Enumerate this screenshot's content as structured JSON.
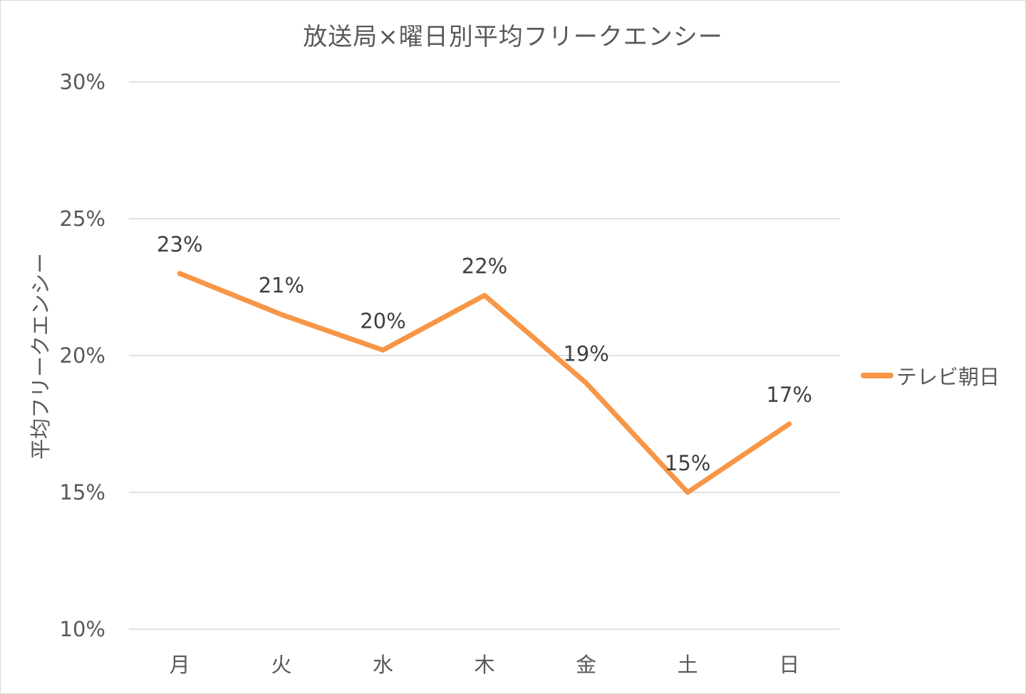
{
  "chart_data": {
    "type": "line",
    "title": "放送局×曜日別平均フリークエンシー",
    "xlabel": "",
    "ylabel": "平均フリークエンシー",
    "categories": [
      "月",
      "火",
      "水",
      "木",
      "金",
      "土",
      "日"
    ],
    "series": [
      {
        "name": "テレビ朝日",
        "color": "#F79646",
        "values": [
          0.23,
          0.215,
          0.202,
          0.222,
          0.19,
          0.15,
          0.175
        ],
        "labels": [
          "23%",
          "21%",
          "20%",
          "22%",
          "19%",
          "15%",
          "17%"
        ]
      }
    ],
    "ylim": [
      0.1,
      0.3
    ],
    "yticks": [
      {
        "value": 0.3,
        "label": "30%"
      },
      {
        "value": 0.25,
        "label": "25%"
      },
      {
        "value": 0.2,
        "label": "20%"
      },
      {
        "value": 0.15,
        "label": "15%"
      },
      {
        "value": 0.1,
        "label": "10%"
      }
    ],
    "grid": true,
    "legend": "right",
    "gridColor": "#d9d9d9"
  }
}
